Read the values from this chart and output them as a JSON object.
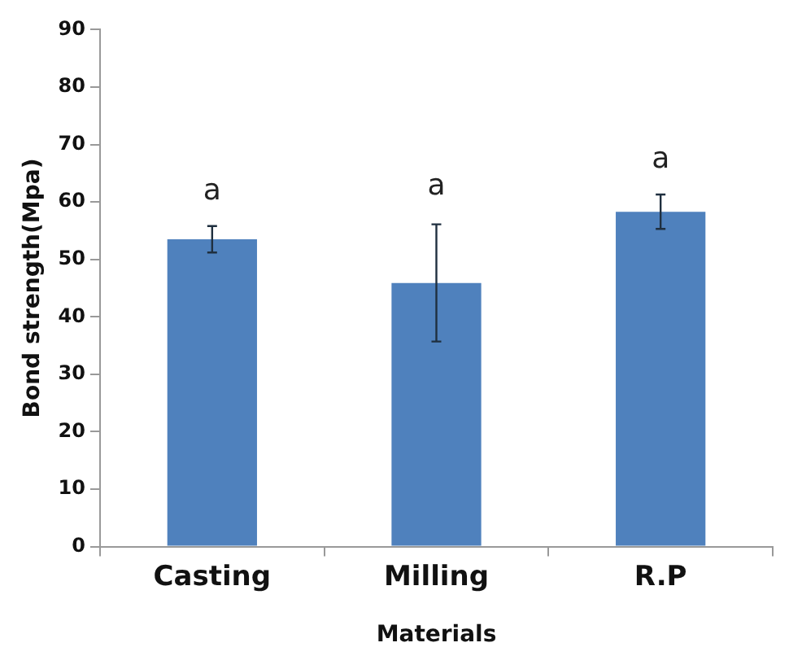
{
  "chart_data": {
    "type": "bar",
    "xlabel": "Materials",
    "ylabel": "Bond strength(Mpa)",
    "categories": [
      "Casting",
      "Milling",
      "R.P"
    ],
    "values": [
      53.5,
      45.9,
      58.3
    ],
    "errors": [
      2.3,
      10.2,
      3
    ],
    "color": "#4f81bd",
    "ylim": [
      0,
      90
    ],
    "yticks": [
      0,
      10,
      20,
      30,
      40,
      50,
      60,
      70,
      80,
      90
    ],
    "grid": false,
    "legend": false,
    "annotations": [
      "a",
      "a",
      "a"
    ]
  }
}
